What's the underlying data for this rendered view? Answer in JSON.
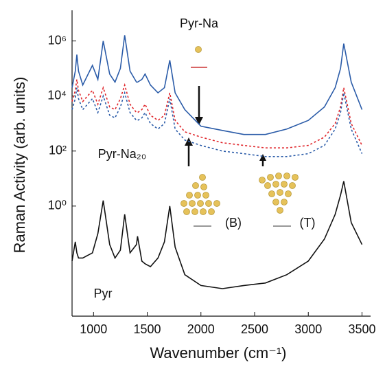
{
  "chart_data": {
    "type": "line",
    "y_label": "Raman Activity (arb. units)",
    "x_label": "Wavenumber (cm⁻¹)",
    "annotation": "Pyr-Na₂₀",
    "log_y": true,
    "xlim": [
      800,
      3580
    ],
    "xticks": [
      1000,
      1500,
      2000,
      2500,
      3000,
      3500
    ],
    "ylim": [
      0.0001,
      13000000
    ],
    "yticks": [
      {
        "value": 1,
        "label": "10⁰"
      },
      {
        "value": 100,
        "label": "10²"
      },
      {
        "value": 10000,
        "label": "10⁴"
      },
      {
        "value": 1000000,
        "label": "10⁶"
      }
    ],
    "x": [
      800,
      830,
      845,
      860,
      900,
      990,
      1040,
      1090,
      1150,
      1200,
      1250,
      1290,
      1340,
      1400,
      1410,
      1450,
      1480,
      1530,
      1600,
      1660,
      1710,
      1760,
      1850,
      2000,
      2200,
      2400,
      2600,
      2800,
      3000,
      3150,
      3250,
      3300,
      3330,
      3400,
      3500
    ],
    "series": [
      {
        "name": "Pyr-Na",
        "color": "#2a5ba8",
        "dashed": false,
        "values": [
          20000,
          80000,
          320000,
          80000,
          25000,
          130000,
          40000,
          1000000,
          63000,
          32000,
          100000,
          1600000,
          80000,
          32000,
          32000,
          40000,
          63000,
          25000,
          13000,
          20000,
          200000,
          13000,
          3200,
          800,
          560,
          400,
          400,
          630,
          1300,
          4000,
          20000,
          100000,
          800000,
          32000,
          3200
        ]
      },
      {
        "name": "(B)",
        "color": "#e0262b",
        "dashed": true,
        "values": [
          6300,
          16000,
          40000,
          16000,
          6300,
          16000,
          5000,
          20000,
          4000,
          3200,
          8000,
          25000,
          5000,
          2500,
          2500,
          3200,
          5000,
          2000,
          1300,
          2000,
          13000,
          1300,
          500,
          320,
          200,
          160,
          130,
          130,
          160,
          320,
          1000,
          4000,
          20000,
          1000,
          160
        ]
      },
      {
        "name": "(T)",
        "color": "#2a5ba8",
        "dashed": true,
        "values": [
          3200,
          8000,
          20000,
          8000,
          3200,
          8000,
          2500,
          10000,
          2000,
          1600,
          4000,
          13000,
          2500,
          1300,
          1300,
          1600,
          2500,
          1000,
          630,
          1000,
          8000,
          630,
          250,
          160,
          100,
          80,
          63,
          63,
          80,
          160,
          630,
          2500,
          13000,
          630,
          80
        ]
      },
      {
        "name": "Pyr",
        "color": "#111111",
        "dashed": false,
        "values": [
          0.01,
          0.05,
          0.02,
          0.013,
          0.013,
          0.02,
          0.1,
          1.6,
          0.04,
          0.013,
          0.025,
          0.5,
          0.02,
          0.04,
          0.08,
          0.01,
          0.008,
          0.0063,
          0.013,
          0.05,
          1,
          0.032,
          0.0032,
          0.0013,
          0.001,
          0.0013,
          0.0016,
          0.0032,
          0.01,
          0.063,
          0.5,
          2.5,
          8,
          0.25,
          0.04
        ]
      }
    ]
  }
}
